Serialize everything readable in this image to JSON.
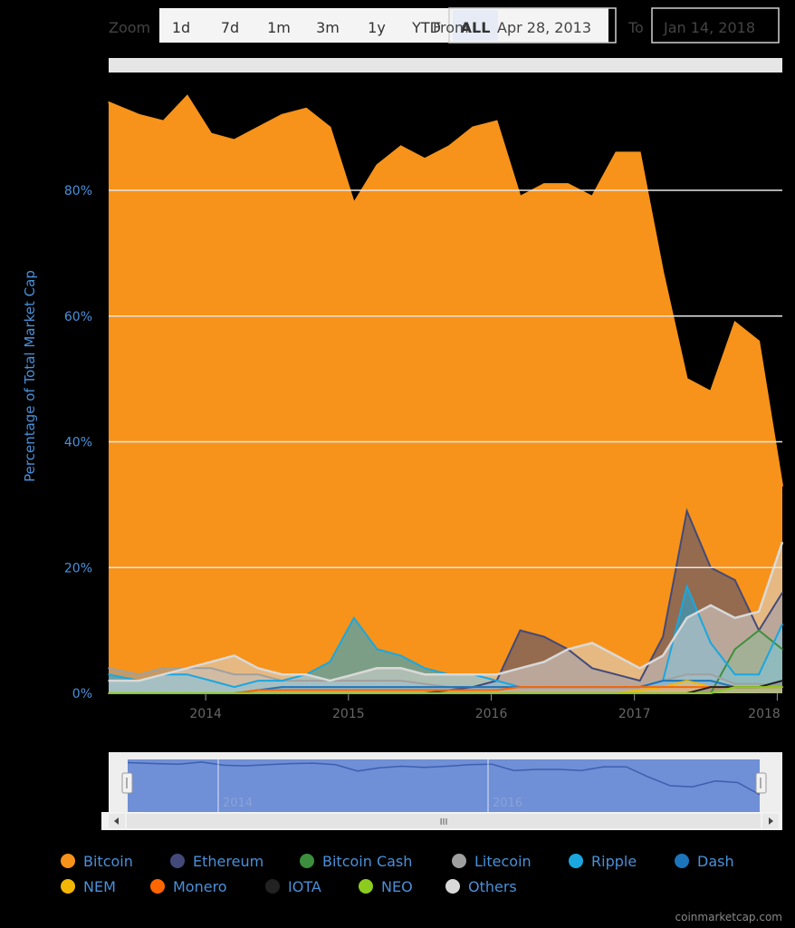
{
  "toolbar": {
    "zoom_label": "Zoom",
    "zoom_buttons": [
      "1d",
      "7d",
      "1m",
      "3m",
      "1y",
      "YTD",
      "ALL"
    ],
    "active_zoom": "ALL",
    "from_label": "From",
    "from_date": "Apr 28, 2013",
    "to_label": "To",
    "to_date": "Jan 14, 2018"
  },
  "navigator": {
    "labels": [
      "2014",
      "2016"
    ],
    "scroll_grip": "III"
  },
  "watermark": "coinmarketcap.com",
  "colors": {
    "bitcoin": "#f7931a",
    "ethereum": "#434a7a",
    "bitcoin_cash": "#3c8f3c",
    "litecoin": "#a0a0a0",
    "ripple": "#1aa7e0",
    "dash": "#1c75bc",
    "nem": "#f2b705",
    "monero": "#ff6600",
    "iota": "#222222",
    "neo": "#8ccc1f",
    "others": "#d9d9d9",
    "axis_text": "#4a90d9"
  },
  "chart_data": {
    "type": "area",
    "title": "",
    "ylabel": "Percentage of Total Market Cap",
    "xlabel": "",
    "ylim": [
      0,
      100
    ],
    "yticks": [
      "0%",
      "20%",
      "40%",
      "60%",
      "80%"
    ],
    "xticks": [
      "2014",
      "2015",
      "2016",
      "2017",
      "2018"
    ],
    "x_range": [
      "2013-04-28",
      "2018-01-14"
    ],
    "legend_position": "bottom",
    "x": [
      "2013-05",
      "2013-07",
      "2013-09",
      "2013-11",
      "2014-01",
      "2014-03",
      "2014-05",
      "2014-07",
      "2014-09",
      "2014-11",
      "2015-01",
      "2015-03",
      "2015-05",
      "2015-07",
      "2015-09",
      "2015-11",
      "2016-01",
      "2016-03",
      "2016-05",
      "2016-07",
      "2016-09",
      "2016-11",
      "2017-01",
      "2017-03",
      "2017-05",
      "2017-07",
      "2017-09",
      "2017-11",
      "2018-01"
    ],
    "series": [
      {
        "name": "Bitcoin",
        "values": [
          94,
          92,
          91,
          95,
          89,
          88,
          90,
          92,
          93,
          90,
          78,
          84,
          87,
          85,
          87,
          90,
          91,
          79,
          81,
          81,
          79,
          86,
          86,
          67,
          50,
          48,
          59,
          56,
          33
        ]
      },
      {
        "name": "Ethereum",
        "values": [
          0,
          0,
          0,
          0,
          0,
          0,
          0,
          0,
          0,
          0,
          0,
          0,
          0,
          0,
          0.5,
          1,
          2,
          10,
          9,
          7,
          4,
          3,
          2,
          9,
          29,
          20,
          18,
          10,
          16
        ]
      },
      {
        "name": "Bitcoin Cash",
        "values": [
          0,
          0,
          0,
          0,
          0,
          0,
          0,
          0,
          0,
          0,
          0,
          0,
          0,
          0,
          0,
          0,
          0,
          0,
          0,
          0,
          0,
          0,
          0,
          0,
          0,
          0,
          7,
          10,
          7
        ]
      },
      {
        "name": "Litecoin",
        "values": [
          4,
          3,
          4,
          4,
          4,
          3,
          3,
          2,
          2,
          2,
          2,
          2,
          2,
          1.5,
          1,
          1,
          1,
          1,
          1,
          1,
          1,
          1,
          1,
          2,
          3,
          3,
          1.5,
          1.5,
          1
        ]
      },
      {
        "name": "Ripple",
        "values": [
          3,
          2,
          3,
          3,
          2,
          1,
          2,
          2,
          3,
          5,
          12,
          7,
          6,
          4,
          3,
          3,
          2,
          1,
          1,
          1,
          1,
          1,
          1,
          2,
          17,
          8,
          3,
          3,
          11
        ]
      },
      {
        "name": "Dash",
        "values": [
          0,
          0,
          0,
          0,
          0,
          0,
          0.5,
          1,
          1,
          1,
          1,
          1,
          1,
          1,
          1,
          1,
          1,
          1,
          1,
          1,
          1,
          1,
          1,
          2,
          2,
          2,
          1,
          1,
          1
        ]
      },
      {
        "name": "NEM",
        "values": [
          0,
          0,
          0,
          0,
          0,
          0,
          0,
          0,
          0,
          0,
          0,
          0,
          0,
          0,
          0,
          0,
          0,
          0,
          0,
          0,
          0,
          0,
          0.5,
          1,
          2,
          1,
          1,
          1,
          1
        ]
      },
      {
        "name": "Monero",
        "values": [
          0,
          0,
          0,
          0,
          0,
          0,
          0.5,
          0.5,
          0.5,
          0.5,
          0.5,
          0.5,
          0.5,
          0.5,
          0.5,
          0.5,
          0.5,
          1,
          1,
          1,
          1,
          1,
          1,
          1,
          1,
          1,
          1,
          1,
          1
        ]
      },
      {
        "name": "IOTA",
        "values": [
          0,
          0,
          0,
          0,
          0,
          0,
          0,
          0,
          0,
          0,
          0,
          0,
          0,
          0,
          0,
          0,
          0,
          0,
          0,
          0,
          0,
          0,
          0,
          0,
          0,
          1,
          1,
          1,
          2
        ]
      },
      {
        "name": "NEO",
        "values": [
          0,
          0,
          0,
          0,
          0,
          0,
          0,
          0,
          0,
          0,
          0,
          0,
          0,
          0,
          0,
          0,
          0,
          0,
          0,
          0,
          0,
          0,
          0,
          0,
          0,
          0,
          1,
          1,
          1
        ]
      },
      {
        "name": "Others",
        "values": [
          2,
          2,
          3,
          4,
          5,
          6,
          4,
          3,
          3,
          2,
          3,
          4,
          4,
          3,
          3,
          3,
          3,
          4,
          5,
          7,
          8,
          6,
          4,
          6,
          12,
          14,
          12,
          13,
          24
        ]
      }
    ]
  }
}
